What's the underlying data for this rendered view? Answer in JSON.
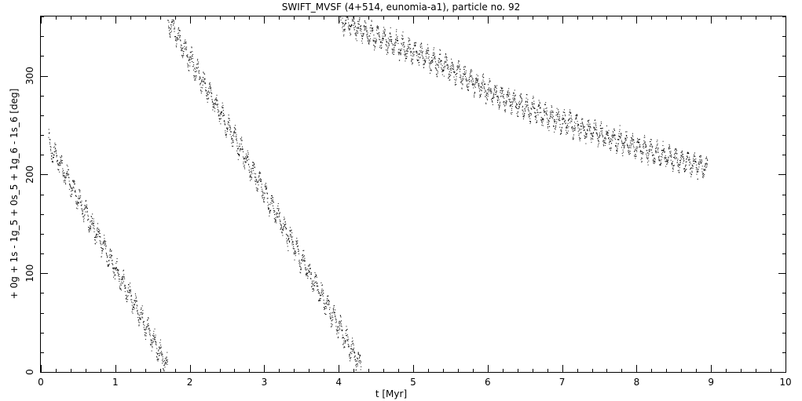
{
  "chart_data": {
    "type": "scatter",
    "title": "SWIFT_MVSF (4+514, eunomia-a1), particle no. 92",
    "xlabel": "t [Myr]",
    "ylabel": "+ 0g + 1s - 1g_5 + 0s_5 + 1g_6 - 1s_6 [deg]",
    "xlim": [
      0,
      10
    ],
    "ylim": [
      0,
      360
    ],
    "x_ticks": [
      "0",
      "1",
      "2",
      "3",
      "4",
      "5",
      "6",
      "7",
      "8",
      "9",
      "10"
    ],
    "y_ticks": [
      "0",
      "100",
      "200",
      "300"
    ],
    "grid": false,
    "legend": "none",
    "marker_color": "#000000",
    "segments": [
      {
        "x": [
          0.1,
          1.7
        ],
        "y": [
          232,
          5
        ]
      },
      {
        "x": [
          1.7,
          4.3
        ],
        "y": [
          358,
          5
        ]
      },
      {
        "x": [
          4.0,
          4.5,
          5.0,
          5.5,
          6.0,
          6.5,
          7.0,
          7.5,
          8.0,
          8.5,
          8.95
        ],
        "y": [
          357,
          340,
          325,
          307,
          285,
          268,
          254,
          241,
          229,
          216,
          206
        ]
      }
    ]
  }
}
